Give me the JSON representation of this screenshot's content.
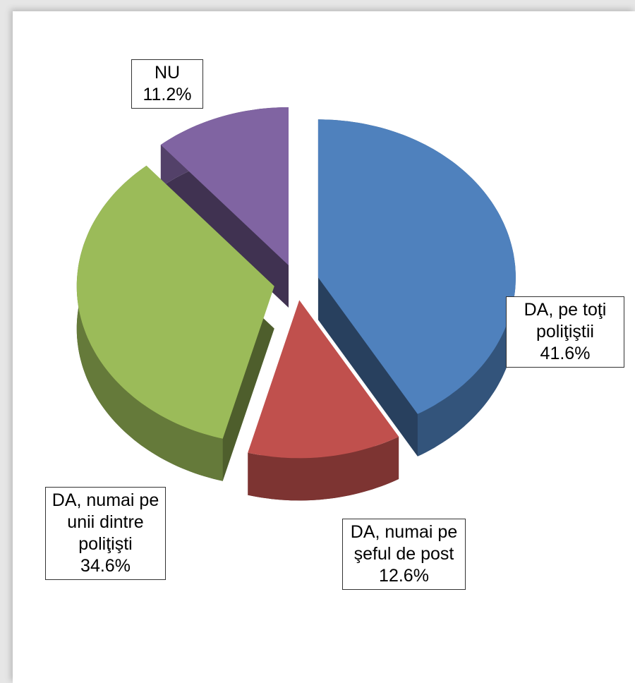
{
  "chart_data": {
    "type": "pie",
    "categories": [
      "DA, pe toţi poliţiştii",
      "DA, numai pe şeful de post",
      "DA, numai pe unii dintre poliţişti",
      "NU"
    ],
    "values": [
      41.6,
      12.6,
      34.6,
      11.2
    ],
    "value_labels": [
      "41.6%",
      "12.6%",
      "34.6%",
      "11.2%"
    ],
    "colors": [
      "#4f81bd",
      "#c0504d",
      "#9bbb59",
      "#8064a2"
    ]
  }
}
